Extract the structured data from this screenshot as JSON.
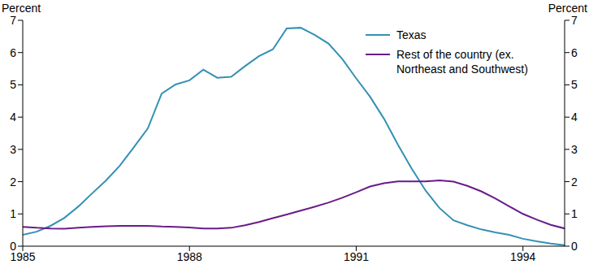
{
  "chart_data": {
    "type": "line",
    "ylabel": "Percent",
    "y2label": "Percent",
    "x": [
      1985,
      1985.25,
      1985.5,
      1985.75,
      1986,
      1986.25,
      1986.5,
      1986.75,
      1987,
      1987.25,
      1987.5,
      1987.75,
      1988,
      1988.25,
      1988.5,
      1988.75,
      1989,
      1989.25,
      1989.5,
      1989.75,
      1990,
      1990.25,
      1990.5,
      1990.75,
      1991,
      1991.25,
      1991.5,
      1991.75,
      1992,
      1992.25,
      1992.5,
      1992.75,
      1993,
      1993.25,
      1993.5,
      1993.75,
      1994,
      1994.25,
      1994.5,
      1994.75
    ],
    "series": [
      {
        "name": "Texas",
        "color": "#3391b4",
        "values": [
          0.35,
          0.45,
          0.63,
          0.88,
          1.23,
          1.64,
          2.04,
          2.5,
          3.07,
          3.65,
          4.73,
          5.01,
          5.14,
          5.47,
          5.22,
          5.25,
          5.58,
          5.89,
          6.1,
          6.75,
          6.77,
          6.55,
          6.28,
          5.8,
          5.2,
          4.63,
          3.95,
          3.15,
          2.4,
          1.72,
          1.18,
          0.8,
          0.65,
          0.52,
          0.43,
          0.35,
          0.23,
          0.15,
          0.08,
          0.03
        ]
      },
      {
        "name": "Rest of the country (ex. Northeast and Southwest)",
        "color": "#6a1b8a",
        "values": [
          0.6,
          0.57,
          0.55,
          0.54,
          0.57,
          0.6,
          0.62,
          0.63,
          0.63,
          0.63,
          0.61,
          0.6,
          0.58,
          0.55,
          0.55,
          0.57,
          0.65,
          0.75,
          0.87,
          0.98,
          1.1,
          1.22,
          1.35,
          1.5,
          1.67,
          1.85,
          1.95,
          2.01,
          2.01,
          2.01,
          2.04,
          2.0,
          1.87,
          1.7,
          1.48,
          1.24,
          1.0,
          0.82,
          0.66,
          0.55
        ]
      }
    ],
    "xlim": [
      1985,
      1994.75
    ],
    "xticks": [
      1985,
      1988,
      1991,
      1994
    ],
    "ylim": [
      0,
      7
    ],
    "yticks": [
      0,
      1,
      2,
      3,
      4,
      5,
      6,
      7
    ],
    "y2lim": [
      0,
      7
    ],
    "y2ticks": [
      0,
      1,
      2,
      3,
      4,
      5,
      6,
      7
    ],
    "legend": "upper right",
    "grid": false
  }
}
